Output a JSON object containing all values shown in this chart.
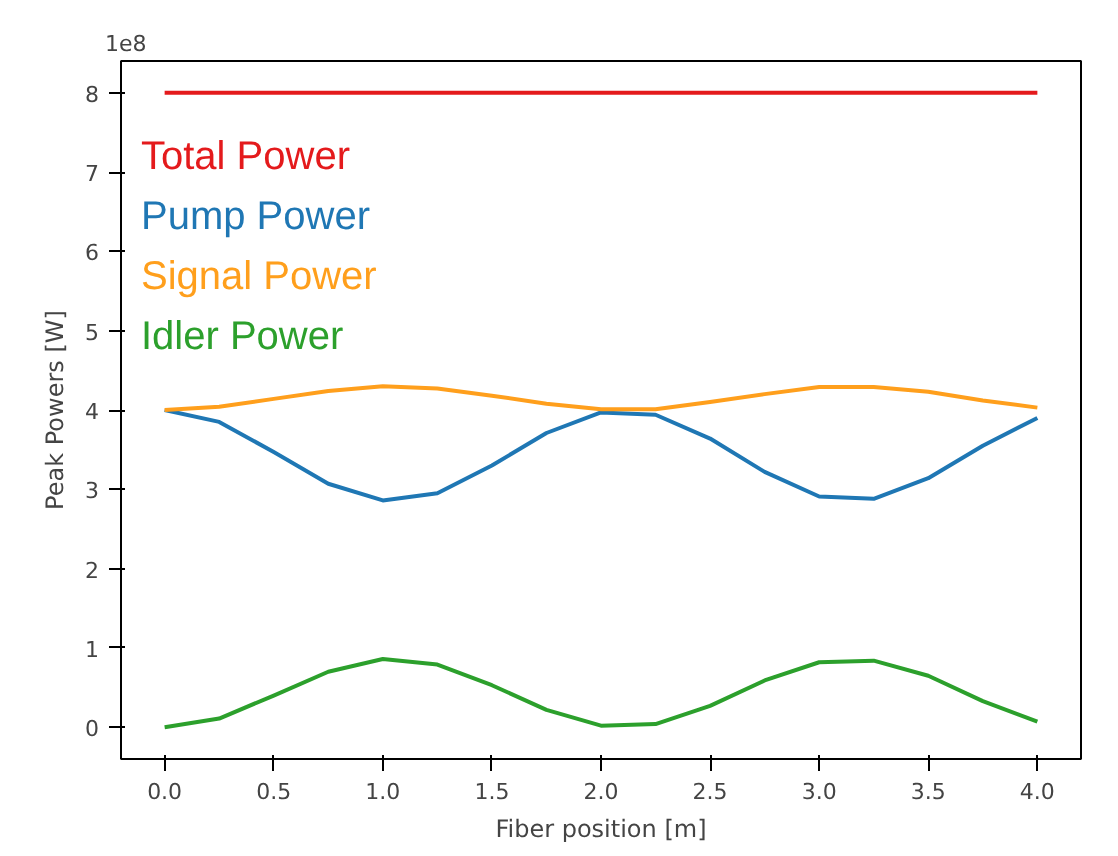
{
  "chart_data": {
    "type": "line",
    "xlabel": "Fiber position [m]",
    "ylabel": "Peak Powers [W]",
    "annotations": [
      "1e8"
    ],
    "xlim": [
      -0.2,
      4.2
    ],
    "ylim": [
      -0.4,
      8.4
    ],
    "xticks": [
      {
        "value": 0,
        "label": "0.0"
      },
      {
        "value": 0.5,
        "label": "0.5"
      },
      {
        "value": 1,
        "label": "1.0"
      },
      {
        "value": 1.5,
        "label": "1.5"
      },
      {
        "value": 2,
        "label": "2.0"
      },
      {
        "value": 2.5,
        "label": "2.5"
      },
      {
        "value": 3,
        "label": "3.0"
      },
      {
        "value": 3.5,
        "label": "3.5"
      },
      {
        "value": 4,
        "label": "4.0"
      }
    ],
    "yticks": [
      0,
      1,
      2,
      3,
      4,
      5,
      6,
      7,
      8
    ],
    "grid": false,
    "legend": "top left",
    "x": [
      0,
      0.25,
      0.5,
      0.75,
      1.0,
      1.25,
      1.5,
      1.75,
      2.0,
      2.25,
      2.5,
      2.75,
      3.0,
      3.25,
      3.5,
      3.75,
      4.0
    ],
    "series": [
      {
        "name": "Total Power",
        "color": "#e41a1c",
        "values": [
          8,
          8,
          8,
          8,
          8,
          8,
          8,
          8,
          8,
          8,
          8,
          8,
          8,
          8,
          8,
          8,
          8
        ]
      },
      {
        "name": "Pump Power",
        "color": "#1f77b4",
        "values": [
          4.0,
          3.85,
          3.47,
          3.07,
          2.86,
          2.95,
          3.3,
          3.71,
          3.97,
          3.94,
          3.64,
          3.22,
          2.91,
          2.88,
          3.14,
          3.55,
          3.9
        ]
      },
      {
        "name": "Signal Power",
        "color": "#ff9f1c",
        "values": [
          4.0,
          4.04,
          4.14,
          4.24,
          4.3,
          4.27,
          4.18,
          4.08,
          4.01,
          4.01,
          4.1,
          4.2,
          4.29,
          4.29,
          4.23,
          4.12,
          4.03
        ]
      },
      {
        "name": "Idler Power",
        "color": "#2ca02c",
        "values": [
          0,
          0.11,
          0.4,
          0.7,
          0.86,
          0.79,
          0.53,
          0.22,
          0.02,
          0.04,
          0.27,
          0.59,
          0.82,
          0.84,
          0.65,
          0.33,
          0.07
        ]
      }
    ]
  }
}
